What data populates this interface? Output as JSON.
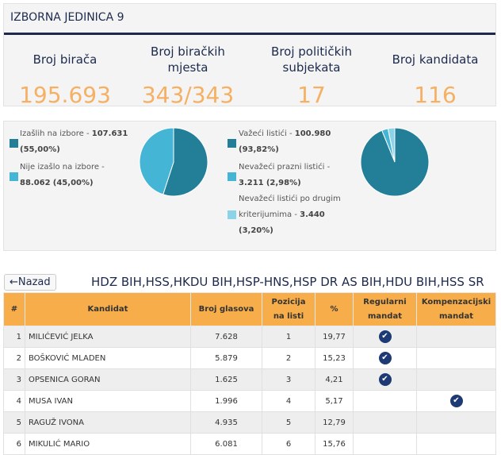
{
  "header": {
    "title": "IZBORNA JEDINICA 9"
  },
  "stats": [
    {
      "label": "Broj birača",
      "value": "195.693"
    },
    {
      "label": "Broj biračkih mjesta",
      "value": "343/343"
    },
    {
      "label": "Broj političkih subjekata",
      "value": "17"
    },
    {
      "label": "Broj kandidata",
      "value": "116"
    }
  ],
  "colors": {
    "dark": "#237e98",
    "medium": "#45b5d6",
    "light": "#8dd3e8",
    "orange": "#f7ad4a",
    "navy": "#1d2a4d"
  },
  "turnout": {
    "items": [
      {
        "label": "Izašlih na izbore - ",
        "value": "107.631",
        "pct": "(55,00%)",
        "share": 55.0
      },
      {
        "label": "Nije izašlo na izbore - ",
        "value": "88.062",
        "pct": "(45,00%)",
        "share": 45.0
      }
    ]
  },
  "ballots": {
    "items": [
      {
        "label": "Važeći listići - ",
        "value": "100.980",
        "pct": "(93,82%)",
        "share": 93.82
      },
      {
        "label": "Nevažeći prazni listići - ",
        "value": "3.211",
        "pct": "(2,98%)",
        "share": 2.98
      },
      {
        "label": "Nevažeći listići po drugim kriterijumima - ",
        "value": "3.440",
        "pct": "(3,20%)",
        "share": 3.2
      }
    ]
  },
  "back_label": "Nazad",
  "party": "HDZ BIH,HSS,HKDU BIH,HSP-HNS,HSP DR AS BIH,HDU BIH,HSS SR",
  "table": {
    "headers": [
      "#",
      "Kandidat",
      "Broj glasova",
      "Pozicija na listi",
      "%",
      "Regularni mandat",
      "Kompenzacijski mandat"
    ],
    "rows": [
      {
        "n": "1",
        "name": "MILIĆEVIĆ JELKA",
        "votes": "7.628",
        "pos": "1",
        "pct": "19,77",
        "reg": true,
        "komp": false
      },
      {
        "n": "2",
        "name": "BOŠKOVIĆ MLADEN",
        "votes": "5.879",
        "pos": "2",
        "pct": "15,23",
        "reg": true,
        "komp": false
      },
      {
        "n": "3",
        "name": "OPSENICA GORAN",
        "votes": "1.625",
        "pos": "3",
        "pct": "4,21",
        "reg": true,
        "komp": false
      },
      {
        "n": "4",
        "name": "MUSA IVAN",
        "votes": "1.996",
        "pos": "4",
        "pct": "5,17",
        "reg": false,
        "komp": true
      },
      {
        "n": "5",
        "name": "RAGUŽ IVONA",
        "votes": "4.935",
        "pos": "5",
        "pct": "12,79",
        "reg": false,
        "komp": false
      },
      {
        "n": "6",
        "name": "MIKULIĆ MARIO",
        "votes": "6.081",
        "pos": "6",
        "pct": "15,76",
        "reg": false,
        "komp": false
      }
    ]
  }
}
